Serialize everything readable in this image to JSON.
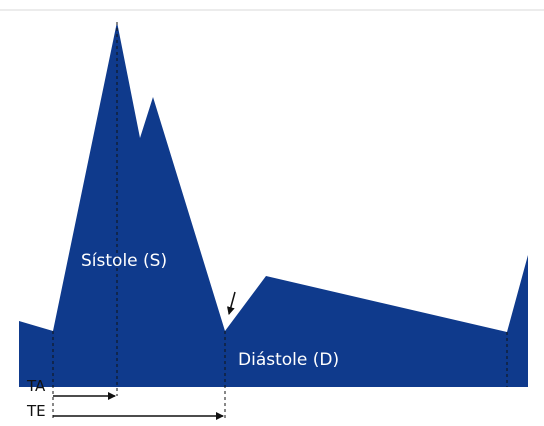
{
  "labels": {
    "systole": "Sístole (S)",
    "diastole": "Diástole (D)",
    "ta": "TA",
    "te": "TE"
  },
  "colors": {
    "waveform": "#0f3a8c",
    "guide": "#111111",
    "top_rule": "#d9d9d9"
  }
}
